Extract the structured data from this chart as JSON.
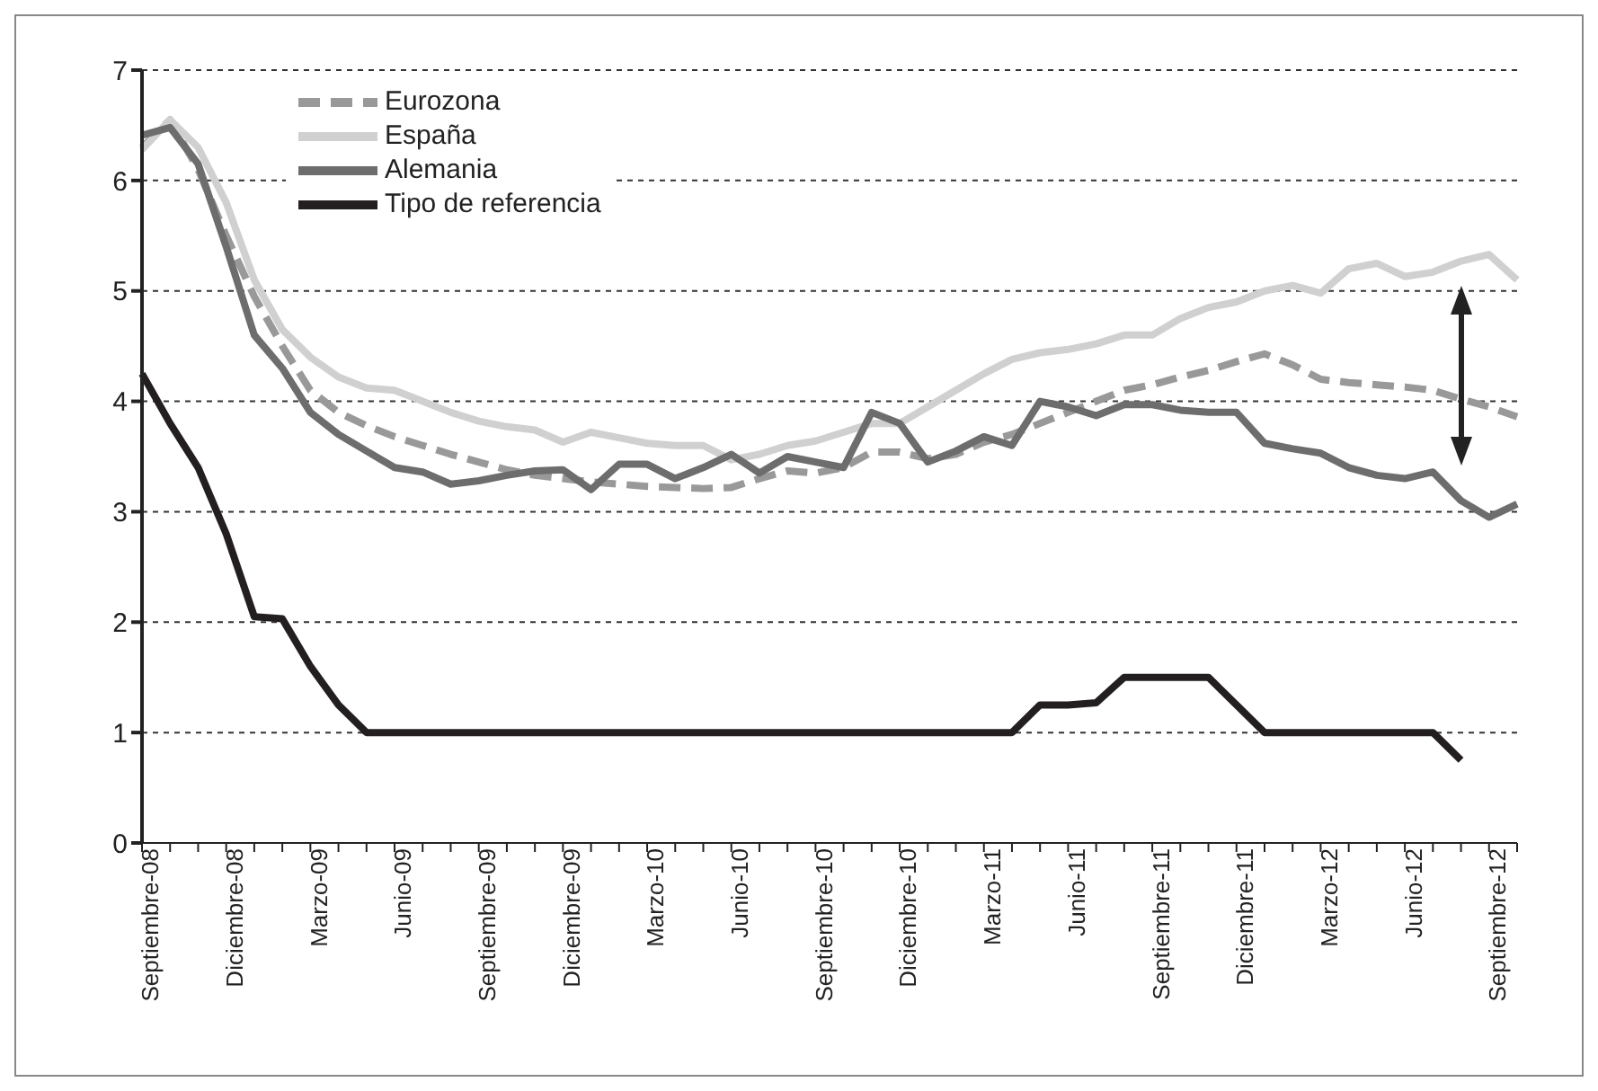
{
  "chart_data": {
    "type": "line",
    "categories": [
      "Septiembre-08",
      null,
      null,
      "Diciembre-08",
      null,
      null,
      "Marzo-09",
      null,
      null,
      "Junio-09",
      null,
      null,
      "Septiembre-09",
      null,
      null,
      "Diciembre-09",
      null,
      null,
      "Marzo-10",
      null,
      null,
      "Junio-10",
      null,
      null,
      "Septiembre-10",
      null,
      null,
      "Diciembre-10",
      null,
      null,
      "Marzo-11",
      null,
      null,
      "Junio-11",
      null,
      null,
      "Septiembre-11",
      null,
      null,
      "Diciembre-11",
      null,
      null,
      "Marzo-12",
      null,
      null,
      "Junio-12",
      null,
      null,
      "Septiembre-12",
      null
    ],
    "series": [
      {
        "name": "Eurozona",
        "color": "#999999",
        "line_style": "dashed",
        "values": [
          6.3,
          6.55,
          6.1,
          5.5,
          4.95,
          4.5,
          4.1,
          3.9,
          3.78,
          3.68,
          3.6,
          3.52,
          3.45,
          3.38,
          3.33,
          3.3,
          3.27,
          3.25,
          3.23,
          3.22,
          3.21,
          3.22,
          3.3,
          3.37,
          3.35,
          3.4,
          3.54,
          3.54,
          3.48,
          3.52,
          3.63,
          3.7,
          3.8,
          3.9,
          4.0,
          4.1,
          4.15,
          4.22,
          4.28,
          4.36,
          4.43,
          4.33,
          4.2,
          4.17,
          4.15,
          4.13,
          4.1,
          4.02,
          3.95,
          3.86
        ]
      },
      {
        "name": "España",
        "color": "#d0d0d0",
        "values": [
          6.28,
          6.55,
          6.3,
          5.8,
          5.1,
          4.65,
          4.4,
          4.22,
          4.12,
          4.1,
          4.0,
          3.9,
          3.82,
          3.77,
          3.74,
          3.63,
          3.72,
          3.67,
          3.62,
          3.6,
          3.6,
          3.47,
          3.52,
          3.6,
          3.64,
          3.72,
          3.8,
          3.8,
          3.95,
          4.1,
          4.25,
          4.38,
          4.44,
          4.47,
          4.52,
          4.6,
          4.6,
          4.75,
          4.85,
          4.9,
          5.0,
          5.05,
          4.98,
          5.2,
          5.25,
          5.13,
          5.17,
          5.27,
          5.33,
          5.1
        ]
      },
      {
        "name": "Alemania",
        "color": "#6d6d6d",
        "values": [
          6.41,
          6.48,
          6.15,
          5.4,
          4.6,
          4.3,
          3.9,
          3.7,
          3.55,
          3.4,
          3.36,
          3.25,
          3.28,
          3.33,
          3.37,
          3.38,
          3.2,
          3.43,
          3.43,
          3.3,
          3.4,
          3.52,
          3.35,
          3.5,
          3.45,
          3.4,
          3.9,
          3.8,
          3.45,
          3.55,
          3.68,
          3.6,
          4.0,
          3.95,
          3.87,
          3.97,
          3.97,
          3.92,
          3.9,
          3.9,
          3.62,
          3.57,
          3.53,
          3.4,
          3.33,
          3.3,
          3.36,
          3.1,
          2.95,
          3.07
        ]
      },
      {
        "name": "Tipo de referencia",
        "color": "#231f20",
        "values": [
          4.25,
          3.8,
          3.4,
          2.8,
          2.05,
          2.03,
          1.6,
          1.25,
          1.0,
          1.0,
          1.0,
          1.0,
          1.0,
          1.0,
          1.0,
          1.0,
          1.0,
          1.0,
          1.0,
          1.0,
          1.0,
          1.0,
          1.0,
          1.0,
          1.0,
          1.0,
          1.0,
          1.0,
          1.0,
          1.0,
          1.0,
          1.0,
          1.25,
          1.25,
          1.27,
          1.5,
          1.5,
          1.5,
          1.5,
          1.25,
          1.0,
          1.0,
          1.0,
          1.0,
          1.0,
          1.0,
          1.0,
          0.75,
          null,
          null
        ]
      }
    ],
    "ylim": [
      0,
      7
    ],
    "yticks": [
      0,
      1,
      2,
      3,
      4,
      5,
      6,
      7
    ],
    "grid": "y",
    "legend": "top left",
    "marker": "none"
  }
}
